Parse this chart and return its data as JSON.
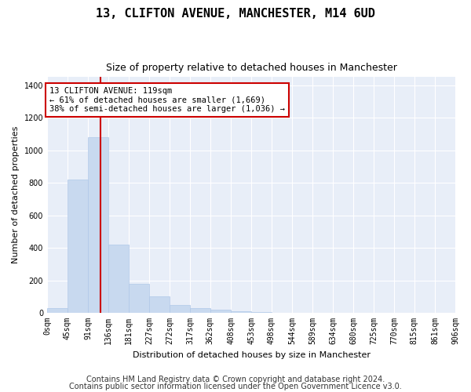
{
  "title": "13, CLIFTON AVENUE, MANCHESTER, M14 6UD",
  "subtitle": "Size of property relative to detached houses in Manchester",
  "xlabel": "Distribution of detached houses by size in Manchester",
  "ylabel": "Number of detached properties",
  "annotation_line1": "13 CLIFTON AVENUE: 119sqm",
  "annotation_line2": "← 61% of detached houses are smaller (1,669)",
  "annotation_line3": "38% of semi-detached houses are larger (1,036) →",
  "bar_color": "#c8d9ef",
  "bar_edge_color": "#b0c8e8",
  "vline_color": "#cc0000",
  "vline_x": 119,
  "plot_bg_color": "#e8eef8",
  "bins": [
    0,
    45,
    91,
    136,
    181,
    227,
    272,
    317,
    362,
    408,
    453,
    498,
    544,
    589,
    634,
    680,
    725,
    770,
    815,
    861,
    906
  ],
  "bin_labels": [
    "0sqm",
    "45sqm",
    "91sqm",
    "136sqm",
    "181sqm",
    "227sqm",
    "272sqm",
    "317sqm",
    "362sqm",
    "408sqm",
    "453sqm",
    "498sqm",
    "544sqm",
    "589sqm",
    "634sqm",
    "680sqm",
    "725sqm",
    "770sqm",
    "815sqm",
    "861sqm",
    "906sqm"
  ],
  "bar_heights": [
    30,
    820,
    1080,
    420,
    180,
    100,
    50,
    30,
    20,
    10,
    5,
    2,
    1,
    0,
    0,
    0,
    0,
    0,
    0,
    0
  ],
  "ylim": [
    0,
    1450
  ],
  "yticks": [
    0,
    200,
    400,
    600,
    800,
    1000,
    1200,
    1400
  ],
  "footer_line1": "Contains HM Land Registry data © Crown copyright and database right 2024.",
  "footer_line2": "Contains public sector information licensed under the Open Government Licence v3.0.",
  "title_fontsize": 11,
  "subtitle_fontsize": 9,
  "axis_label_fontsize": 8,
  "tick_fontsize": 7,
  "footer_fontsize": 7
}
